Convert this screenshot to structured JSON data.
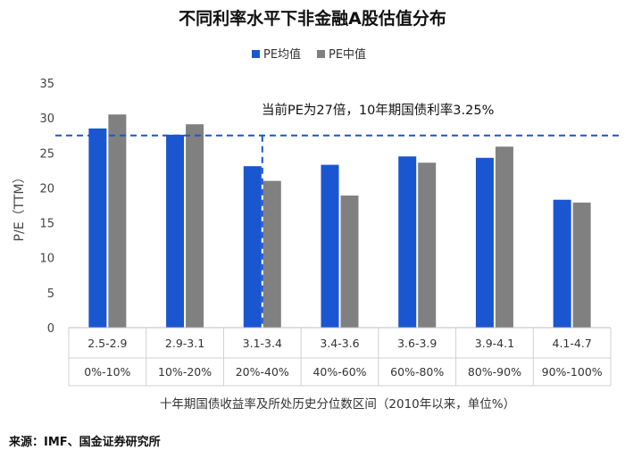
{
  "source": "来源：IMF、国金证券研究所",
  "chart_data": {
    "type": "bar",
    "title": "不同利率水平下非金融A股估值分布",
    "ylabel": "P/E（TTM）",
    "xlabel": "十年期国债收益率及所处历史分位数区间（2010年以来，单位%）",
    "ylim": [
      0,
      35
    ],
    "yticks": [
      0,
      5,
      10,
      15,
      20,
      25,
      30,
      35
    ],
    "categories": [
      "2.5-2.9",
      "2.9-3.1",
      "3.1-3.4",
      "3.4-3.6",
      "3.6-3.9",
      "3.9-4.1",
      "4.1-4.7"
    ],
    "categories_secondary": [
      "0%-10%",
      "10%-20%",
      "20%-40%",
      "40%-60%",
      "60%-80%",
      "80%-90%",
      "90%-100%"
    ],
    "series": [
      {
        "name": "PE均值",
        "color": "#1a56d0",
        "values": [
          28.5,
          27.6,
          23.1,
          23.3,
          24.5,
          24.3,
          18.3
        ]
      },
      {
        "name": "PE中值",
        "color": "#808080",
        "values": [
          30.5,
          29.1,
          21.0,
          18.9,
          23.6,
          25.9,
          17.9
        ]
      }
    ],
    "reference_line": {
      "y": 27.5,
      "x_category": "3.1-3.4",
      "color": "#1a56d0"
    },
    "annotation": "当前PE为27倍，10年期国债利率3.25%",
    "legend_position": "top"
  }
}
